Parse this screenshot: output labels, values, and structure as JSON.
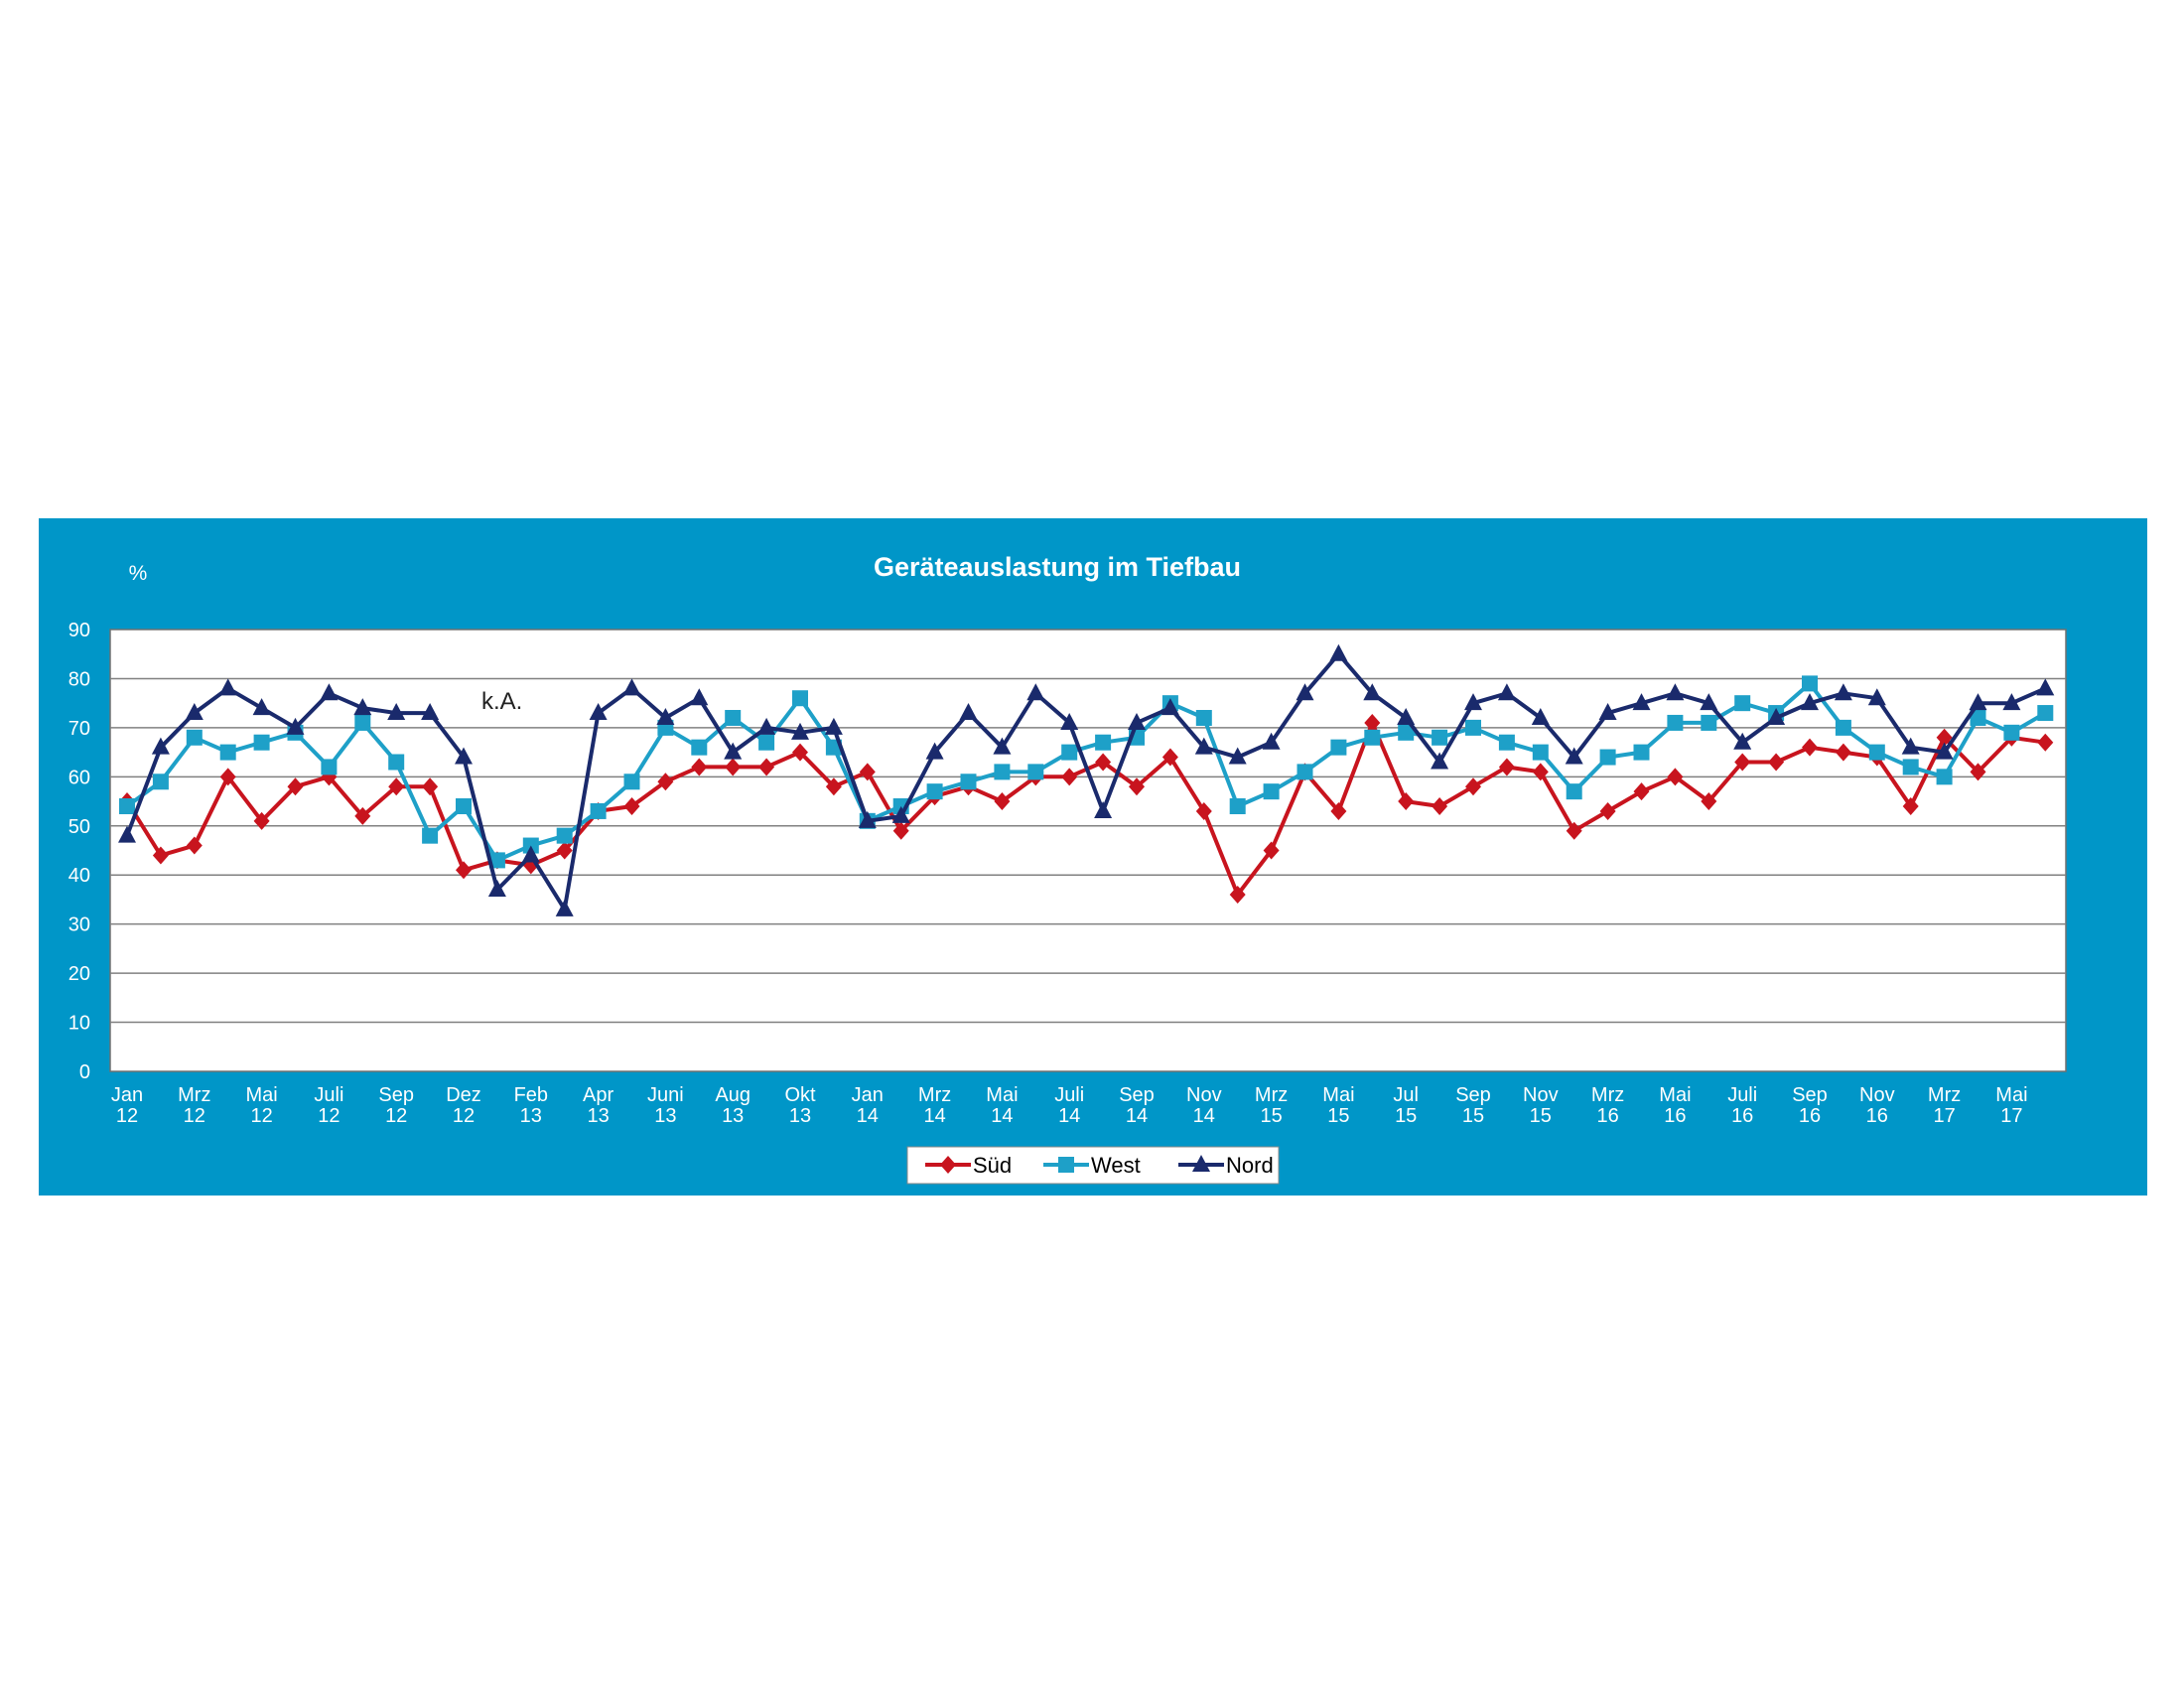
{
  "chart_data": {
    "type": "line",
    "title": "Geräteauslastung im Tiefbau",
    "ylabel": "%",
    "ylim": [
      0,
      90
    ],
    "yticks": [
      "0",
      "10",
      "20",
      "30",
      "40",
      "50",
      "60",
      "70",
      "80",
      "90"
    ],
    "grid": true,
    "legend_position": "bottom",
    "annotation": "k.A.",
    "x_tick_labels": [
      {
        "month": "Jan",
        "year": "12"
      },
      {
        "month": "Mrz",
        "year": "12"
      },
      {
        "month": "Mai",
        "year": "12"
      },
      {
        "month": "Juli",
        "year": "12"
      },
      {
        "month": "Sep",
        "year": "12"
      },
      {
        "month": "Dez",
        "year": "12"
      },
      {
        "month": "Feb",
        "year": "13"
      },
      {
        "month": "Apr",
        "year": "13"
      },
      {
        "month": "Juni",
        "year": "13"
      },
      {
        "month": "Aug",
        "year": "13"
      },
      {
        "month": "Okt",
        "year": "13"
      },
      {
        "month": "Jan",
        "year": "14"
      },
      {
        "month": "Mrz",
        "year": "14"
      },
      {
        "month": "Mai",
        "year": "14"
      },
      {
        "month": "Juli",
        "year": "14"
      },
      {
        "month": "Sep",
        "year": "14"
      },
      {
        "month": "Nov",
        "year": "14"
      },
      {
        "month": "Mrz",
        "year": "15"
      },
      {
        "month": "Mai",
        "year": "15"
      },
      {
        "month": "Jul",
        "year": "15"
      },
      {
        "month": "Sep",
        "year": "15"
      },
      {
        "month": "Nov",
        "year": "15"
      },
      {
        "month": "Mrz",
        "year": "16"
      },
      {
        "month": "Mai",
        "year": "16"
      },
      {
        "month": "Juli",
        "year": "16"
      },
      {
        "month": "Sep",
        "year": "16"
      },
      {
        "month": "Nov",
        "year": "16"
      },
      {
        "month": "Mrz",
        "year": "17"
      },
      {
        "month": "Mai",
        "year": "17"
      }
    ],
    "series": [
      {
        "name": "Süd",
        "color": "#c8141e",
        "marker": "diamond",
        "values": [
          55,
          44,
          46,
          60,
          51,
          58,
          60,
          52,
          58,
          58,
          41,
          43,
          42,
          45,
          53,
          54,
          59,
          62,
          62,
          62,
          65,
          58,
          61,
          49,
          56,
          58,
          55,
          60,
          60,
          63,
          58,
          64,
          53,
          36,
          45,
          61,
          53,
          71,
          55,
          54,
          58,
          62,
          61,
          49,
          53,
          57,
          60,
          55,
          63,
          63,
          66,
          65,
          64,
          54,
          68,
          61,
          68,
          67
        ]
      },
      {
        "name": "West",
        "color": "#1ea0c8",
        "marker": "square",
        "values": [
          54,
          59,
          68,
          65,
          67,
          69,
          62,
          71,
          63,
          48,
          54,
          43,
          46,
          48,
          53,
          59,
          70,
          66,
          72,
          67,
          76,
          66,
          51,
          54,
          57,
          59,
          61,
          61,
          65,
          67,
          68,
          75,
          72,
          54,
          57,
          61,
          66,
          68,
          69,
          68,
          70,
          67,
          65,
          57,
          64,
          65,
          71,
          71,
          75,
          73,
          79,
          70,
          65,
          62,
          60,
          72,
          69,
          73
        ]
      },
      {
        "name": "Nord",
        "color": "#1a2a6c",
        "marker": "triangle",
        "values": [
          48,
          66,
          73,
          78,
          74,
          70,
          77,
          74,
          73,
          73,
          64,
          37,
          44,
          33,
          73,
          78,
          72,
          76,
          65,
          70,
          69,
          70,
          51,
          52,
          65,
          73,
          66,
          77,
          71,
          53,
          71,
          74,
          66,
          64,
          67,
          77,
          85,
          77,
          72,
          63,
          75,
          77,
          72,
          64,
          73,
          75,
          77,
          75,
          67,
          72,
          75,
          77,
          76,
          66,
          65,
          75,
          75,
          78
        ]
      }
    ]
  }
}
